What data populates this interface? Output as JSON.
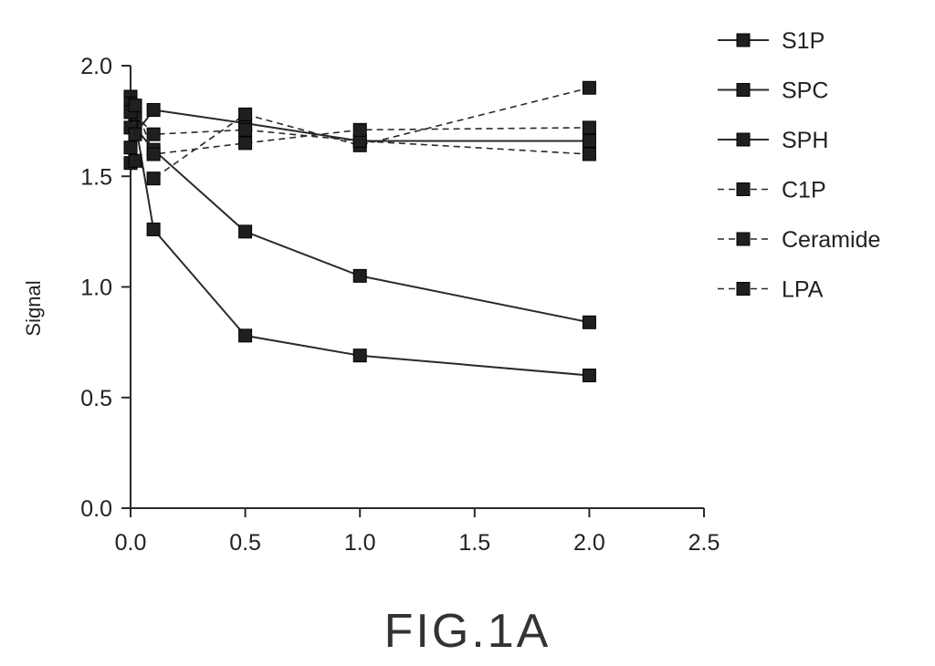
{
  "caption": "FIG.1A",
  "chart_data": {
    "type": "line",
    "title": "",
    "xlabel": "",
    "ylabel": "Signal",
    "xlim": [
      0.0,
      2.5
    ],
    "ylim": [
      0.0,
      2.0
    ],
    "xticks": [
      "0.0",
      "0.5",
      "1.0",
      "1.5",
      "2.0",
      "2.5"
    ],
    "yticks": [
      "0.0",
      "0.5",
      "1.0",
      "1.5",
      "2.0"
    ],
    "grid": false,
    "legend_position": "right",
    "marker": "square",
    "series": [
      {
        "name": "S1P",
        "line_style": "solid",
        "points": [
          [
            0.0,
            1.86
          ],
          [
            0.02,
            1.75
          ],
          [
            0.1,
            1.26
          ],
          [
            0.5,
            0.78
          ],
          [
            1.0,
            0.69
          ],
          [
            2.0,
            0.6
          ]
        ]
      },
      {
        "name": "SPC",
        "line_style": "solid",
        "points": [
          [
            0.0,
            1.83
          ],
          [
            0.02,
            1.72
          ],
          [
            0.1,
            1.62
          ],
          [
            0.5,
            1.25
          ],
          [
            1.0,
            1.05
          ],
          [
            2.0,
            0.84
          ]
        ]
      },
      {
        "name": "SPH",
        "line_style": "solid",
        "points": [
          [
            0.0,
            1.72
          ],
          [
            0.02,
            1.69
          ],
          [
            0.1,
            1.8
          ],
          [
            0.5,
            1.74
          ],
          [
            1.0,
            1.66
          ],
          [
            2.0,
            1.66
          ]
        ]
      },
      {
        "name": "C1P",
        "line_style": "dashed",
        "points": [
          [
            0.0,
            1.56
          ],
          [
            0.02,
            1.57
          ],
          [
            0.1,
            1.49
          ],
          [
            0.5,
            1.78
          ],
          [
            1.0,
            1.64
          ],
          [
            2.0,
            1.9
          ]
        ]
      },
      {
        "name": "Ceramide",
        "line_style": "dashed",
        "points": [
          [
            0.0,
            1.63
          ],
          [
            0.02,
            1.78
          ],
          [
            0.1,
            1.69
          ],
          [
            0.5,
            1.71
          ],
          [
            1.0,
            1.66
          ],
          [
            2.0,
            1.6
          ]
        ]
      },
      {
        "name": "LPA",
        "line_style": "dashed",
        "points": [
          [
            0.0,
            1.79
          ],
          [
            0.02,
            1.82
          ],
          [
            0.1,
            1.6
          ],
          [
            0.5,
            1.65
          ],
          [
            1.0,
            1.71
          ],
          [
            2.0,
            1.72
          ]
        ]
      }
    ]
  }
}
